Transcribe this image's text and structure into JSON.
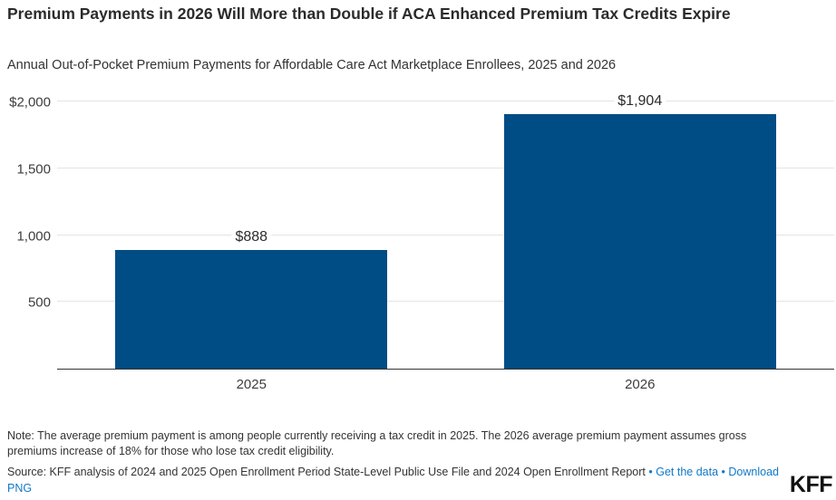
{
  "header": {
    "title": "Premium Payments in 2026 Will More than Double if ACA Enhanced Premium Tax Credits Expire",
    "subtitle": "Annual Out-of-Pocket Premium Payments for Affordable Care Act Marketplace Enrollees, 2025 and 2026"
  },
  "chart_data": {
    "type": "bar",
    "title": "Premium Payments in 2026 Will More than Double if ACA Enhanced Premium Tax Credits Expire",
    "subtitle": "Annual Out-of-Pocket Premium Payments for Affordable Care Act Marketplace Enrollees, 2025 and 2026",
    "categories": [
      "2025",
      "2026"
    ],
    "values": [
      888,
      1904
    ],
    "value_labels": [
      "$888",
      "$1,904"
    ],
    "xlabel": "",
    "ylabel": "",
    "ylim": [
      0,
      2000
    ],
    "ytick_values": [
      500,
      1000,
      1500,
      2000
    ],
    "ytick_labels": [
      "500",
      "1,000",
      "1,500",
      "$2,000"
    ],
    "grid": "horizontal",
    "legend_position": "none",
    "bar_color": "#004c84",
    "gridline_color": "#e4e4e4",
    "axis_line_color": "#333333"
  },
  "footer": {
    "note": "Note: The average premium payment is among people currently receiving a tax credit in 2025. The 2026 average premium payment assumes gross premiums increase of 18% for those who lose tax credit eligibility.",
    "source_text": "Source: KFF analysis of 2024 and 2025 Open Enrollment Period State-Level Public Use File and 2024 Open Enrollment Report",
    "separator": "•",
    "get_data_label": "Get the data",
    "download_label": "Download PNG",
    "logo": "KFF"
  },
  "colors": {
    "bar": "#004c84",
    "link": "#1178c8",
    "title_text": "#2b2b2b",
    "body_text": "#333333",
    "gridline": "#e4e4e4"
  }
}
